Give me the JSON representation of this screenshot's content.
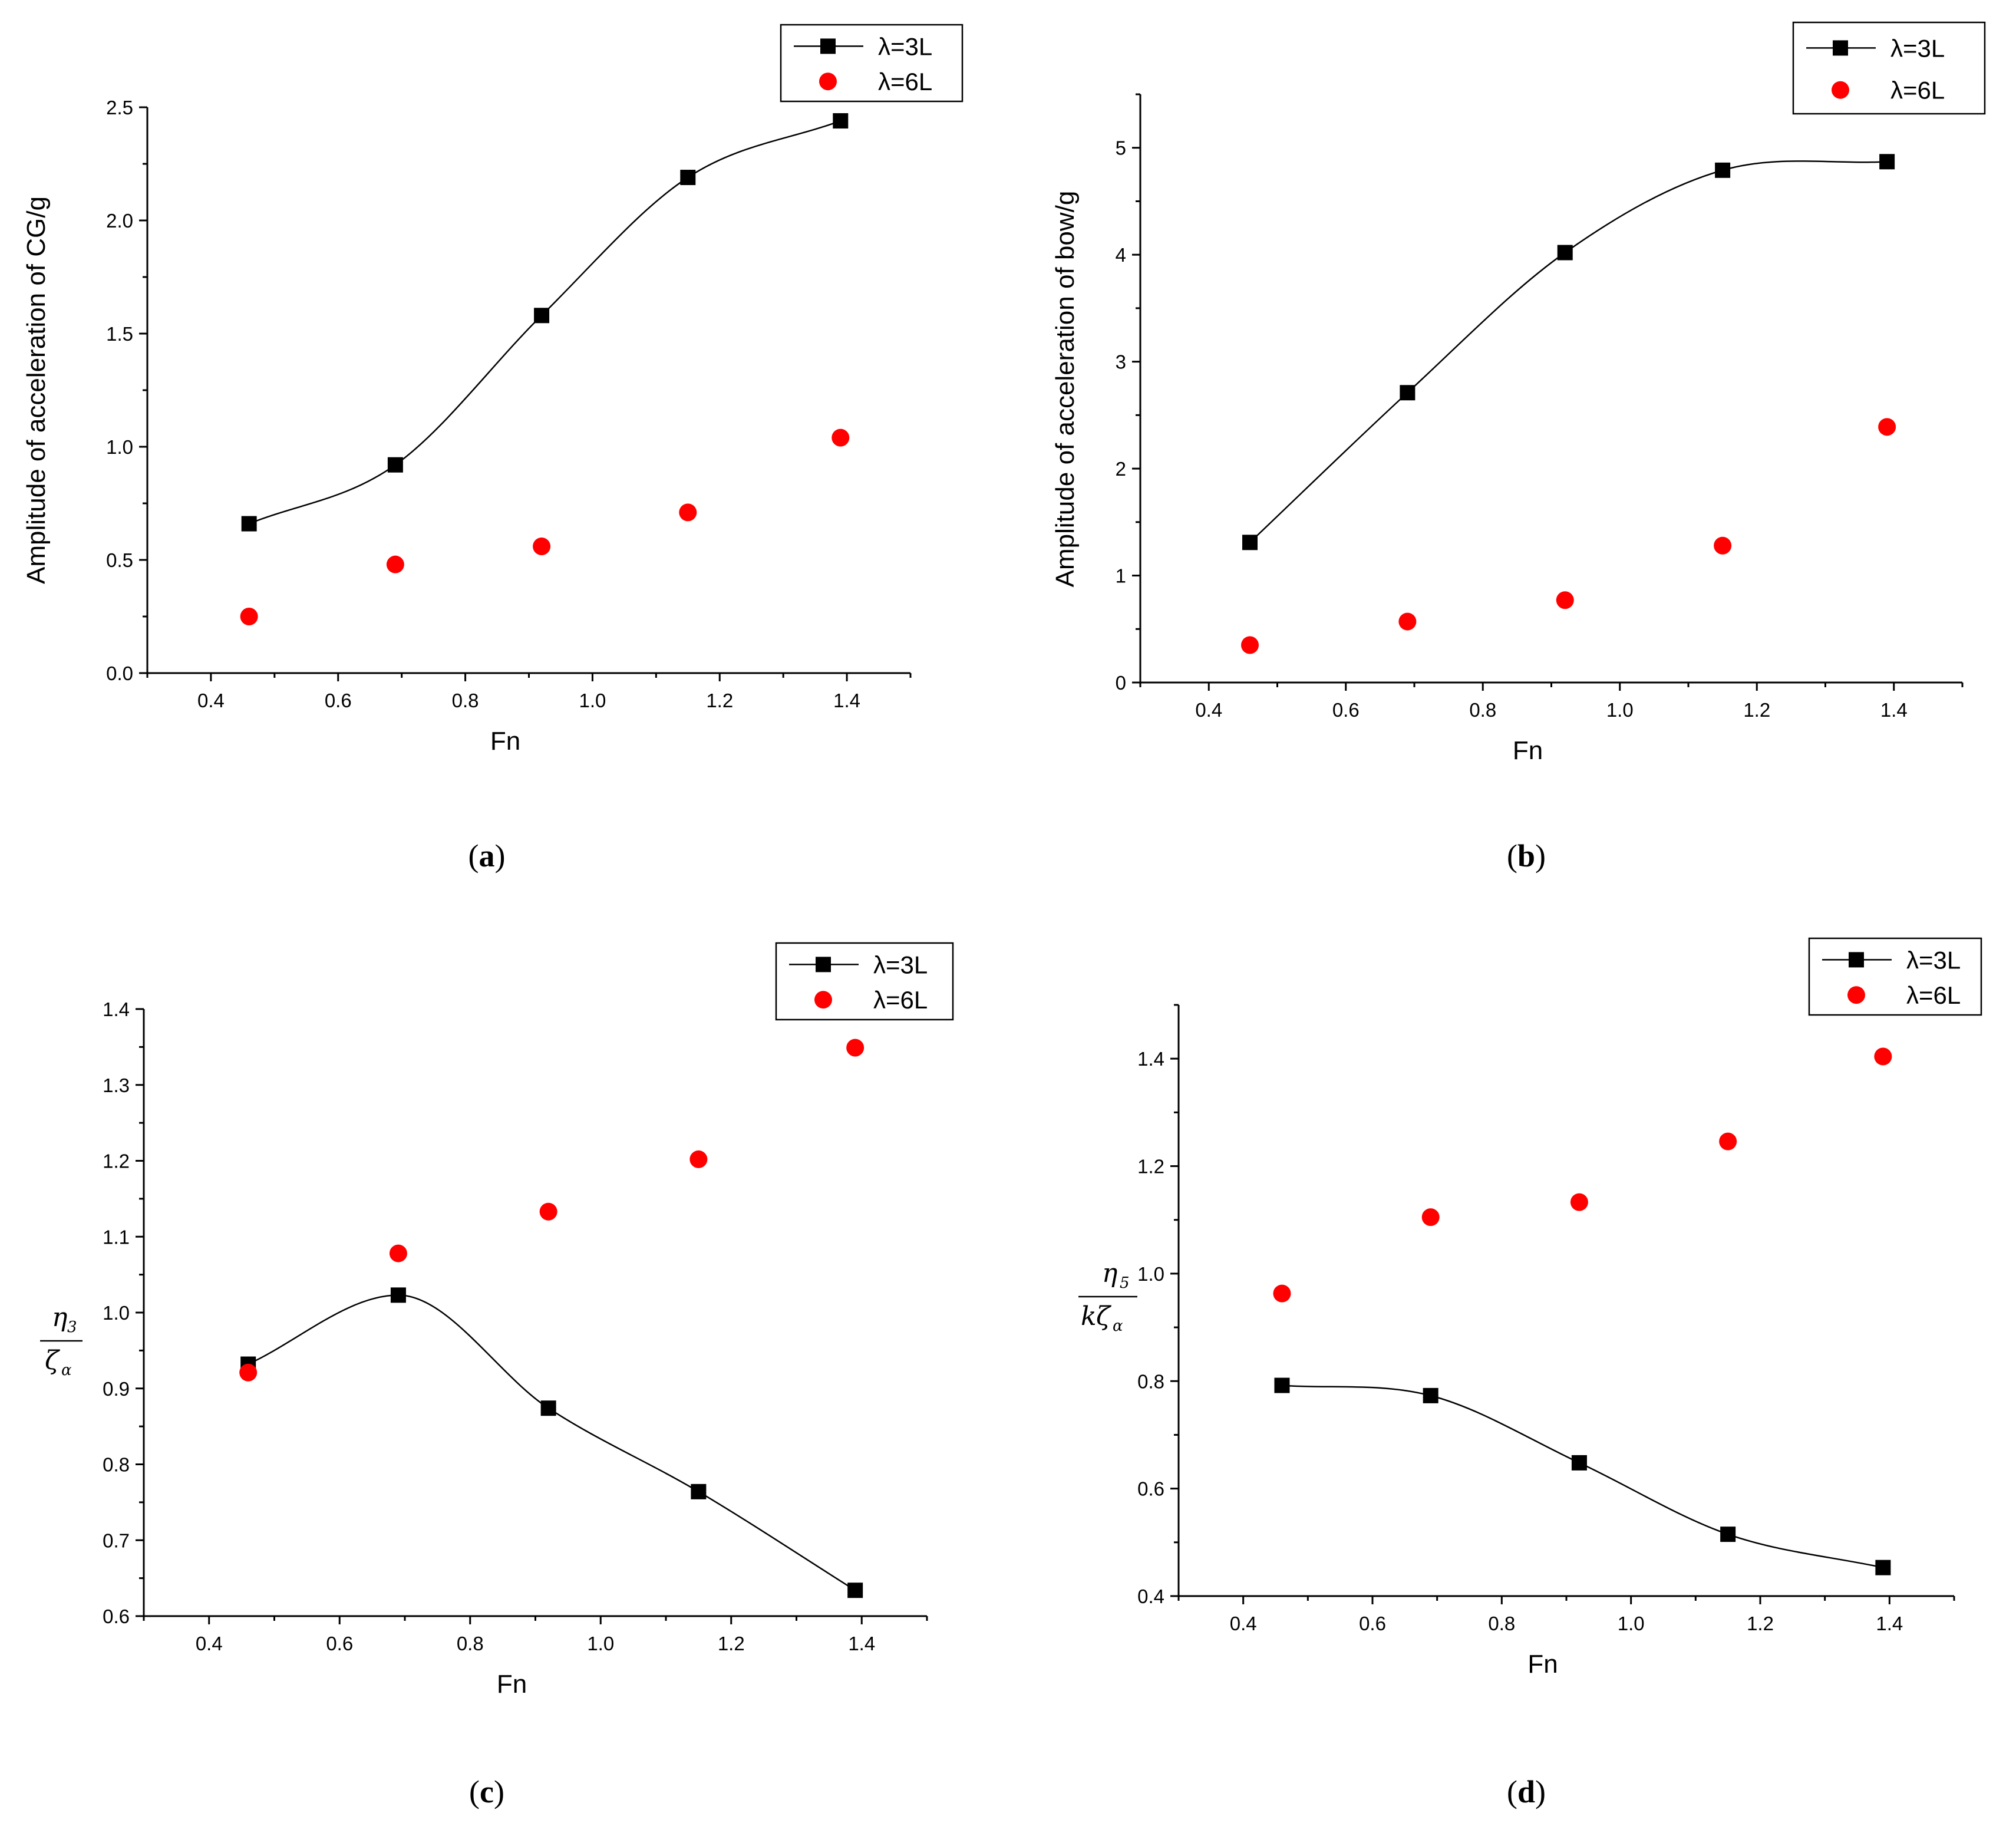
{
  "colors": {
    "axis": "#000000",
    "series_3L": "#000000",
    "series_6L": "#ff0000",
    "background": "#ffffff"
  },
  "chart_data": [
    {
      "type": "line",
      "caption": "a",
      "xlabel": "Fn",
      "ylabel": "Amplitude of  acceleration of CG/g",
      "xlim": [
        0.3,
        1.5
      ],
      "ylim": [
        0.0,
        2.5
      ],
      "x_ticks": [
        "0.4",
        "0.6",
        "0.8",
        "1.0",
        "1.2",
        "1.4"
      ],
      "y_ticks": [
        "0.0",
        "0.5",
        "1.0",
        "1.5",
        "2.0",
        "2.5"
      ],
      "x_tick_values": [
        0.4,
        0.6,
        0.8,
        1.0,
        1.2,
        1.4
      ],
      "y_tick_values": [
        0.0,
        0.5,
        1.0,
        1.5,
        2.0,
        2.5
      ],
      "legend": [
        "λ=3L",
        "λ=6L"
      ],
      "legend_position": "top-right",
      "x": [
        0.46,
        0.69,
        0.92,
        1.15,
        1.39
      ],
      "series": [
        {
          "name": "λ=3L",
          "marker": "square",
          "line": true,
          "values": [
            0.66,
            0.92,
            1.58,
            2.19,
            2.44
          ]
        },
        {
          "name": "λ=6L",
          "marker": "circle",
          "line": false,
          "values": [
            0.25,
            0.48,
            0.56,
            0.71,
            1.04
          ]
        }
      ]
    },
    {
      "type": "line",
      "caption": "b",
      "xlabel": "Fn",
      "ylabel": "Amplitude of  acceleration of bow/g",
      "xlim": [
        0.3,
        1.5
      ],
      "ylim": [
        0,
        5.5
      ],
      "x_ticks": [
        "0.4",
        "0.6",
        "0.8",
        "1.0",
        "1.2",
        "1.4"
      ],
      "y_ticks": [
        "0",
        "1",
        "2",
        "3",
        "4",
        "5"
      ],
      "x_tick_values": [
        0.4,
        0.6,
        0.8,
        1.0,
        1.2,
        1.4
      ],
      "y_tick_values": [
        0,
        1,
        2,
        3,
        4,
        5
      ],
      "legend": [
        "λ=3L",
        "λ=6L"
      ],
      "legend_position": "top-right",
      "x": [
        0.46,
        0.69,
        0.92,
        1.15,
        1.39
      ],
      "series": [
        {
          "name": "λ=3L",
          "marker": "square",
          "line": true,
          "values": [
            1.31,
            2.71,
            4.02,
            4.79,
            4.87
          ]
        },
        {
          "name": "λ=6L",
          "marker": "circle",
          "line": false,
          "values": [
            0.35,
            0.57,
            0.77,
            1.28,
            2.39
          ]
        }
      ]
    },
    {
      "type": "line",
      "caption": "c",
      "xlabel": "Fn",
      "ylabel_num": "η",
      "ylabel_num_sub": "3",
      "ylabel_den": "ζ",
      "ylabel_den_sub": "α",
      "ylabel_prefix": "",
      "xlim": [
        0.3,
        1.5
      ],
      "ylim": [
        0.6,
        1.4
      ],
      "x_ticks": [
        "0.4",
        "0.6",
        "0.8",
        "1.0",
        "1.2",
        "1.4"
      ],
      "y_ticks": [
        "0.6",
        "0.7",
        "0.8",
        "0.9",
        "1.0",
        "1.1",
        "1.2",
        "1.3",
        "1.4"
      ],
      "x_tick_values": [
        0.4,
        0.6,
        0.8,
        1.0,
        1.2,
        1.4
      ],
      "y_tick_values": [
        0.6,
        0.7,
        0.8,
        0.9,
        1.0,
        1.1,
        1.2,
        1.3,
        1.4
      ],
      "legend": [
        "λ=3L",
        "λ=6L"
      ],
      "legend_position": "top-right",
      "x": [
        0.46,
        0.69,
        0.92,
        1.15,
        1.39
      ],
      "series": [
        {
          "name": "λ=3L",
          "marker": "square",
          "line": true,
          "values": [
            0.932,
            1.023,
            0.874,
            0.764,
            0.634
          ]
        },
        {
          "name": "λ=6L",
          "marker": "circle",
          "line": false,
          "values": [
            0.921,
            1.078,
            1.133,
            1.202,
            1.349
          ]
        }
      ]
    },
    {
      "type": "line",
      "caption": "d",
      "xlabel": "Fn",
      "ylabel_num": "η",
      "ylabel_num_sub": "5",
      "ylabel_den": "ζ",
      "ylabel_den_sub": "α",
      "ylabel_prefix": "k",
      "xlim": [
        0.3,
        1.5
      ],
      "ylim": [
        0.4,
        1.5
      ],
      "x_ticks": [
        "0.4",
        "0.6",
        "0.8",
        "1.0",
        "1.2",
        "1.4"
      ],
      "y_ticks": [
        "0.4",
        "0.6",
        "0.8",
        "1.0",
        "1.2",
        "1.4"
      ],
      "x_tick_values": [
        0.4,
        0.6,
        0.8,
        1.0,
        1.2,
        1.4
      ],
      "y_tick_values": [
        0.4,
        0.6,
        0.8,
        1.0,
        1.2,
        1.4
      ],
      "legend": [
        "λ=3L",
        "λ=6L"
      ],
      "legend_position": "top-right",
      "x": [
        0.46,
        0.69,
        0.92,
        1.15,
        1.39
      ],
      "series": [
        {
          "name": "λ=3L",
          "marker": "square",
          "line": true,
          "values": [
            0.792,
            0.773,
            0.648,
            0.515,
            0.453
          ]
        },
        {
          "name": "λ=6L",
          "marker": "circle",
          "line": false,
          "values": [
            0.963,
            1.105,
            1.133,
            1.246,
            1.404
          ]
        }
      ]
    }
  ]
}
